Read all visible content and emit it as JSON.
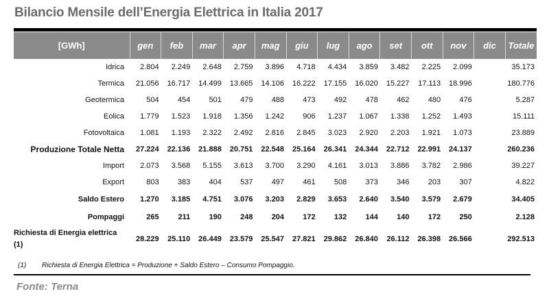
{
  "title": "Bilancio Mensile dell’Energia Elettrica in Italia 2017",
  "table": {
    "headers": [
      "[GWh]",
      "gen",
      "feb",
      "mar",
      "apr",
      "mag",
      "giu",
      "lug",
      "ago",
      "set",
      "ott",
      "nov",
      "dic",
      "Totale"
    ],
    "rows": [
      {
        "label": "Idrica",
        "values": [
          "2.804",
          "2.249",
          "2.648",
          "2.759",
          "3.896",
          "4.718",
          "4.434",
          "3.859",
          "3.482",
          "2.225",
          "2.099",
          "",
          "35.173"
        ]
      },
      {
        "label": "Termica",
        "values": [
          "21.056",
          "16.717",
          "14.499",
          "13.665",
          "14.106",
          "16.222",
          "17.155",
          "16.020",
          "15.227",
          "17.113",
          "18.996",
          "",
          "180.776"
        ]
      },
      {
        "label": "Geotermica",
        "values": [
          "504",
          "454",
          "501",
          "479",
          "488",
          "473",
          "492",
          "478",
          "462",
          "480",
          "476",
          "",
          "5.287"
        ]
      },
      {
        "label": "Eolica",
        "values": [
          "1.779",
          "1.523",
          "1.918",
          "1.356",
          "1.242",
          "906",
          "1.237",
          "1.067",
          "1.338",
          "1.252",
          "1.493",
          "",
          "15.111"
        ]
      },
      {
        "label": "Fotovoltaica",
        "values": [
          "1.081",
          "1.193",
          "2.322",
          "2.492",
          "2.816",
          "2.845",
          "3.023",
          "2.920",
          "2.203",
          "1.921",
          "1.073",
          "",
          "23.889"
        ]
      },
      {
        "label": "Produzione Totale Netta",
        "values": [
          "27.224",
          "22.136",
          "21.888",
          "20.751",
          "22.548",
          "25.164",
          "26.341",
          "24.344",
          "22.712",
          "22.991",
          "24.137",
          "",
          "260.236"
        ]
      },
      {
        "label": "Import",
        "values": [
          "2.073",
          "3.568",
          "5.155",
          "3.613",
          "3.700",
          "3.290",
          "4.161",
          "3.013",
          "3.886",
          "3.782",
          "2.986",
          "",
          "39.227"
        ]
      },
      {
        "label": "Export",
        "values": [
          "803",
          "383",
          "404",
          "537",
          "497",
          "461",
          "508",
          "373",
          "346",
          "203",
          "307",
          "",
          "4.822"
        ]
      },
      {
        "label": "Saldo Estero",
        "values": [
          "1.270",
          "3.185",
          "4.751",
          "3.076",
          "3.203",
          "2.829",
          "3.653",
          "2.640",
          "3.540",
          "3.579",
          "2.679",
          "",
          "34.405"
        ]
      },
      {
        "label": "Pompaggi",
        "values": [
          "265",
          "211",
          "190",
          "248",
          "204",
          "172",
          "132",
          "144",
          "140",
          "172",
          "250",
          "",
          "2.128"
        ]
      },
      {
        "label": "Richiesta di Energia elettrica (1)",
        "values": [
          "28.229",
          "25.110",
          "26.449",
          "23.579",
          "25.547",
          "27.821",
          "29.862",
          "26.840",
          "26.112",
          "26.398",
          "26.566",
          "",
          "292.513"
        ]
      }
    ]
  },
  "footnote": {
    "marker": "(1)",
    "text": "Richiesta di Energia Elettrica = Produzione + Saldo Estero – Consumo Pompaggio."
  },
  "source": "Fonte: Terna",
  "colors": {
    "header_bg": "#8a8a8a",
    "title": "#6b6b6b"
  }
}
